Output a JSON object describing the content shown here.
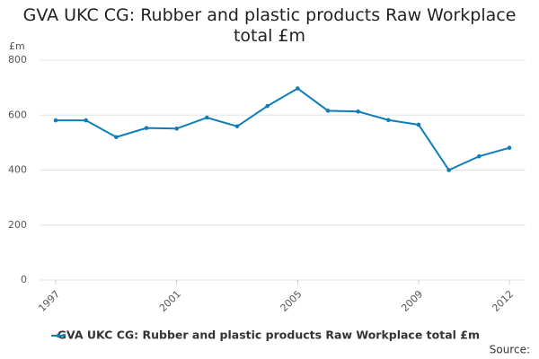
{
  "chart_data": {
    "type": "line",
    "title": "GVA UKC CG: Rubber and plastic products Raw Workplace total £m",
    "y_label": "£m",
    "source": "Source:",
    "x": [
      1997,
      1998,
      1999,
      2000,
      2001,
      2002,
      2003,
      2004,
      2005,
      2006,
      2007,
      2008,
      2009,
      2010,
      2011,
      2012
    ],
    "series": [
      {
        "name": "GVA UKC CG: Rubber and plastic products Raw Workplace total £m",
        "color": "#0f7dba",
        "values": [
          581,
          581,
          520,
          553,
          551,
          591,
          559,
          633,
          697,
          616,
          613,
          582,
          565,
          400,
          450,
          481
        ]
      }
    ],
    "xlim": [
      1997,
      2012
    ],
    "xticks": [
      1997,
      2001,
      2005,
      2009,
      2012
    ],
    "ylim": [
      0,
      800
    ],
    "yticks": [
      0,
      200,
      400,
      600,
      800
    ],
    "grid": true
  }
}
